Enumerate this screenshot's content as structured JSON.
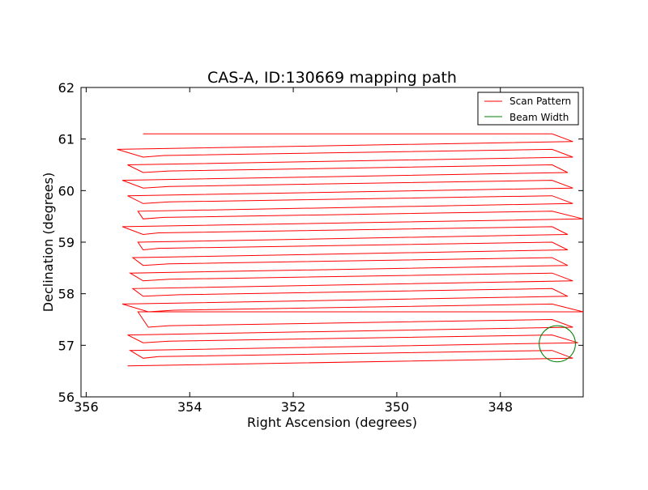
{
  "chart_data": {
    "type": "line",
    "title": "CAS-A, ID:130669 mapping path",
    "xlabel": "Right Ascension (degrees)",
    "ylabel": "Declination (degrees)",
    "xlim": [
      356.1,
      346.4
    ],
    "ylim": [
      56,
      62
    ],
    "x_inverted": true,
    "xticks": [
      356,
      354,
      352,
      350,
      348
    ],
    "xtick_labels": [
      "356",
      "354",
      "352",
      "350",
      "348"
    ],
    "yticks": [
      56,
      57,
      58,
      59,
      60,
      61,
      62
    ],
    "ytick_labels": [
      "56",
      "57",
      "58",
      "59",
      "60",
      "61",
      "62"
    ],
    "grid": false,
    "legend_placement": "top-right",
    "series": [
      {
        "name": "Scan Pattern",
        "color": "#ff0000",
        "x": [
          355.2,
          346.6,
          347.0,
          354.6,
          354.9,
          355.15,
          346.5,
          347.0,
          354.4,
          354.9,
          355.2,
          346.6,
          347.0,
          354.4,
          354.8,
          355.0,
          346.4,
          347.0,
          354.3,
          354.8,
          355.3,
          346.7,
          347.0,
          354.2,
          354.9,
          355.1,
          346.6,
          347.0,
          354.4,
          354.9,
          355.15,
          346.7,
          347.0,
          354.4,
          354.9,
          355.1,
          346.7,
          347.0,
          354.6,
          354.9,
          355.0,
          346.7,
          347.0,
          354.6,
          354.9,
          355.3,
          346.4,
          347.0,
          354.5,
          354.9,
          355.0,
          346.6,
          347.0,
          354.4,
          354.9,
          355.2,
          346.6,
          347.0,
          354.4,
          354.9,
          355.3,
          346.7,
          347.0,
          354.4,
          354.9,
          355.2,
          346.6,
          347.0,
          354.5,
          354.9,
          355.4,
          346.6,
          347.0,
          354.9
        ],
        "y": [
          56.6,
          56.75,
          56.9,
          56.78,
          56.75,
          56.9,
          57.05,
          57.2,
          57.08,
          57.05,
          57.2,
          57.35,
          57.5,
          57.38,
          57.35,
          57.65,
          57.65,
          57.8,
          57.68,
          57.65,
          57.8,
          57.95,
          58.1,
          57.98,
          57.95,
          58.1,
          58.25,
          58.4,
          58.28,
          58.25,
          58.4,
          58.55,
          58.7,
          58.58,
          58.55,
          58.7,
          58.85,
          59.0,
          58.88,
          58.85,
          59.0,
          59.15,
          59.3,
          59.18,
          59.15,
          59.3,
          59.45,
          59.6,
          59.48,
          59.45,
          59.6,
          59.75,
          59.9,
          59.78,
          59.75,
          59.9,
          60.05,
          60.2,
          60.08,
          60.05,
          60.2,
          60.35,
          60.5,
          60.38,
          60.35,
          60.5,
          60.65,
          60.8,
          60.68,
          60.65,
          60.8,
          60.95,
          61.1,
          61.1
        ]
      },
      {
        "name": "Beam Width",
        "color": "#008000",
        "shape": "circle",
        "center": [
          346.9,
          57.03
        ],
        "radius": 0.35
      }
    ]
  }
}
